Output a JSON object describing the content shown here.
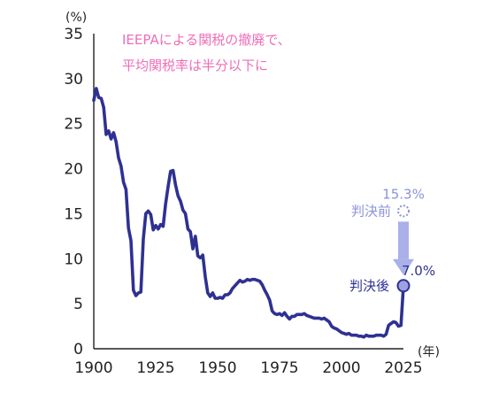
{
  "chart_data": {
    "type": "line",
    "title": "",
    "annotation_lines": [
      "IEEPAによる関税の撤廃で、",
      "平均関税率は半分以下に"
    ],
    "y_unit": "(%)",
    "x_unit": "(年)",
    "xlim": [
      1900,
      2025
    ],
    "ylim": [
      0,
      35
    ],
    "x_ticks": [
      "1900",
      "1925",
      "1950",
      "1975",
      "2000",
      "2025"
    ],
    "y_ticks": [
      "0",
      "5",
      "10",
      "15",
      "20",
      "25",
      "30",
      "35"
    ],
    "grid": false,
    "series": [
      {
        "color": "#2e3192",
        "x": [
          1900,
          1901,
          1902,
          1903,
          1904,
          1905,
          1906,
          1907,
          1908,
          1909,
          1910,
          1911,
          1912,
          1913,
          1914,
          1915,
          1916,
          1917,
          1918,
          1919,
          1920,
          1921,
          1922,
          1923,
          1924,
          1925,
          1926,
          1927,
          1928,
          1929,
          1930,
          1931,
          1932,
          1933,
          1934,
          1935,
          1936,
          1937,
          1938,
          1939,
          1940,
          1941,
          1942,
          1943,
          1944,
          1945,
          1946,
          1947,
          1948,
          1949,
          1950,
          1951,
          1952,
          1953,
          1954,
          1955,
          1956,
          1957,
          1958,
          1959,
          1960,
          1961,
          1962,
          1963,
          1964,
          1965,
          1966,
          1967,
          1968,
          1969,
          1970,
          1971,
          1972,
          1973,
          1974,
          1975,
          1976,
          1977,
          1978,
          1979,
          1980,
          1981,
          1982,
          1983,
          1984,
          1985,
          1986,
          1987,
          1988,
          1989,
          1990,
          1991,
          1992,
          1993,
          1994,
          1995,
          1996,
          1997,
          1998,
          1999,
          2000,
          2001,
          2002,
          2003,
          2004,
          2005,
          2006,
          2007,
          2008,
          2009,
          2010,
          2011,
          2012,
          2013,
          2014,
          2015,
          2016,
          2017,
          2018,
          2019,
          2020,
          2021,
          2022,
          2023,
          2024,
          2025
        ],
        "y": [
          27.6,
          28.9,
          27.9,
          27.8,
          26.8,
          23.8,
          24.2,
          23.3,
          24.0,
          23.0,
          21.2,
          20.3,
          18.5,
          17.7,
          13.4,
          12.0,
          6.5,
          5.9,
          6.2,
          6.3,
          12.2,
          15.0,
          15.3,
          14.9,
          13.2,
          13.7,
          13.3,
          13.8,
          13.6,
          16.1,
          18.0,
          19.7,
          19.8,
          18.2,
          17.0,
          16.4,
          15.4,
          15.0,
          13.3,
          13.0,
          11.1,
          12.5,
          10.3,
          10.1,
          10.4,
          8.0,
          6.2,
          5.8,
          6.2,
          5.6,
          5.6,
          5.7,
          5.6,
          6.0,
          6.0,
          6.2,
          6.7,
          7.0,
          7.3,
          7.6,
          7.4,
          7.5,
          7.7,
          7.6,
          7.7,
          7.7,
          7.6,
          7.5,
          7.1,
          6.5,
          6.0,
          5.4,
          4.2,
          3.9,
          3.8,
          3.9,
          3.7,
          4.0,
          3.6,
          3.3,
          3.6,
          3.6,
          3.8,
          3.8,
          3.8,
          3.9,
          3.7,
          3.6,
          3.5,
          3.4,
          3.4,
          3.4,
          3.3,
          3.4,
          3.2,
          3.0,
          2.5,
          2.3,
          2.2,
          2.0,
          1.8,
          1.7,
          1.6,
          1.7,
          1.5,
          1.5,
          1.5,
          1.4,
          1.4,
          1.3,
          1.5,
          1.4,
          1.4,
          1.4,
          1.5,
          1.5,
          1.5,
          1.4,
          1.6,
          2.6,
          2.8,
          3.0,
          2.9,
          2.5,
          2.6,
          7.0
        ]
      }
    ],
    "markers": [
      {
        "label": "判決前",
        "value_label": "15.3%",
        "x": 2025,
        "y": 15.3,
        "style": "dashed-circle",
        "color": "#8c92d8"
      },
      {
        "label": "判決後",
        "value_label": "7.0%",
        "x": 2025,
        "y": 7.0,
        "style": "filled-circle",
        "color": "#2e3192"
      }
    ],
    "colors": {
      "line": "#2e3192",
      "annotation": "#ee6eb8",
      "before_marker": "#8c92d8",
      "after_marker_fill": "#9da2e4",
      "arrow": "#aab0e8"
    }
  }
}
